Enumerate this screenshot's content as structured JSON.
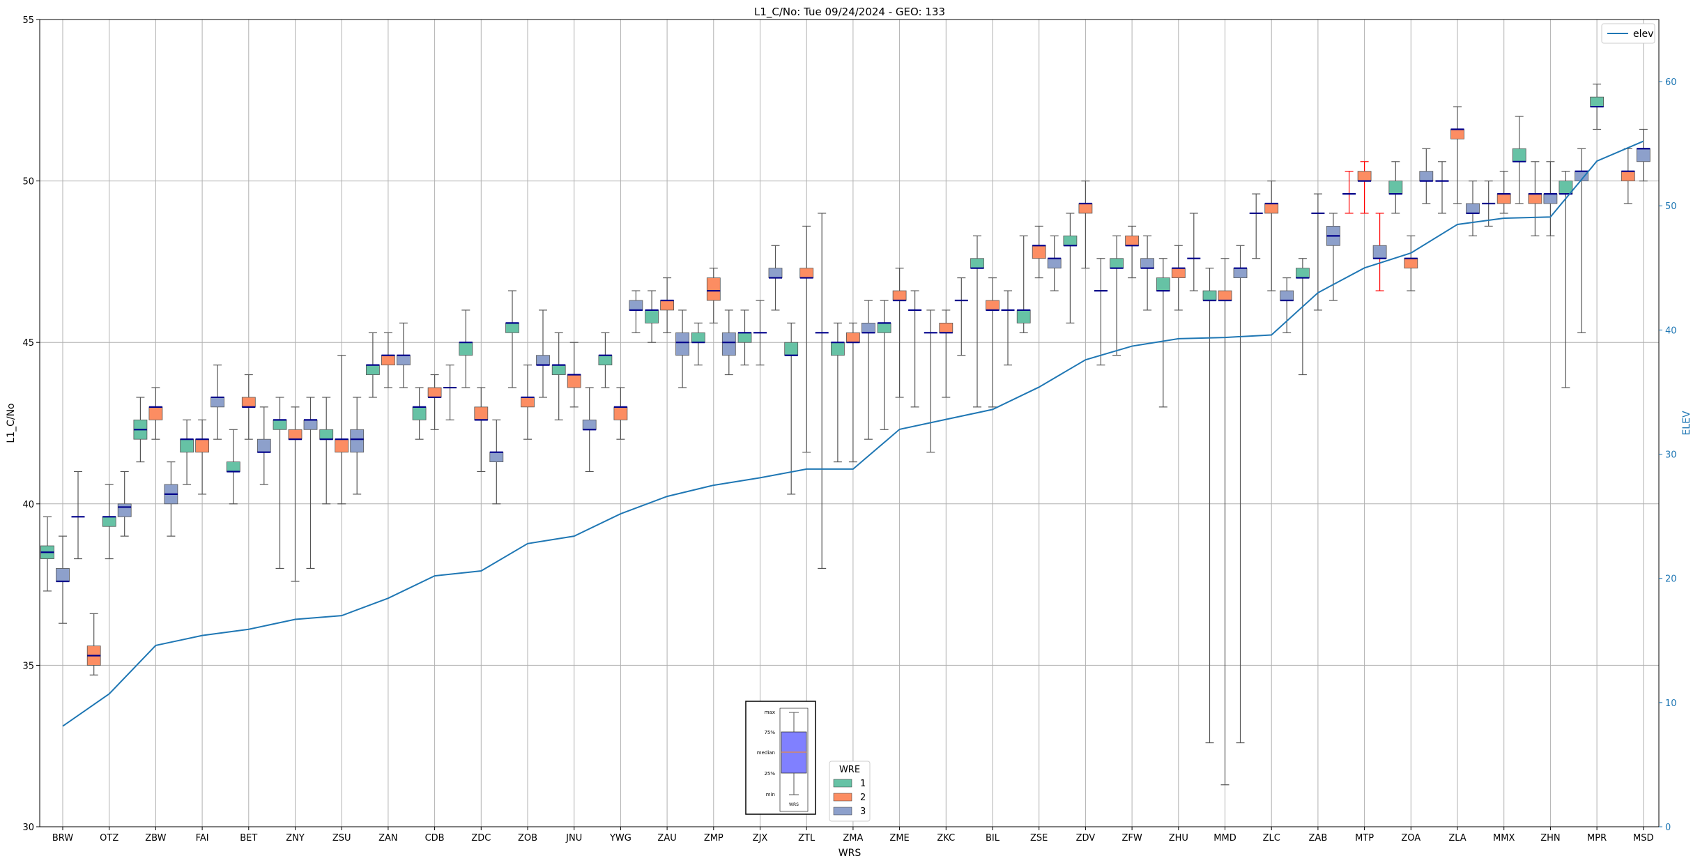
{
  "chart_data": {
    "type": "box",
    "title": "L1_C/No: Tue 09/24/2024 - GEO: 133",
    "xlabel": "WRS",
    "ylabel": "L1_C/No",
    "y2label": "ELEV",
    "ylim": [
      30,
      55
    ],
    "y2lim": [
      0,
      65
    ],
    "yticks": [
      30,
      35,
      40,
      45,
      50,
      55
    ],
    "y2ticks": [
      0,
      10,
      20,
      30,
      40,
      50,
      60
    ],
    "grid": true,
    "legend_elev": {
      "label": "elev",
      "position": "top-right"
    },
    "legend_wre": {
      "title": "WRE",
      "entries": [
        "1",
        "2",
        "3"
      ],
      "position": "bottom-center"
    },
    "colors": {
      "wre1": "#66c2a5",
      "wre2": "#fc8d62",
      "wre3": "#8da0cb",
      "elev": "#1f77b4",
      "median": "#00008b",
      "whisker": "#555555",
      "whisker_alt": "#ff0000"
    },
    "box_key": {
      "labels": [
        "max",
        "75%",
        "median",
        "25%",
        "min"
      ],
      "xlabel": "WRS",
      "fill": "#8080ff"
    },
    "categories": [
      "BRW",
      "OTZ",
      "ZBW",
      "FAI",
      "BET",
      "ZNY",
      "ZSU",
      "ZAN",
      "CDB",
      "ZDC",
      "ZOB",
      "JNU",
      "YWG",
      "ZAU",
      "ZMP",
      "ZJX",
      "ZTL",
      "ZMA",
      "ZME",
      "ZKC",
      "BIL",
      "ZSE",
      "ZDV",
      "ZFW",
      "ZHU",
      "MMD",
      "ZLC",
      "ZAB",
      "MTP",
      "ZOA",
      "ZLA",
      "MMX",
      "ZHN",
      "MPR",
      "MSD"
    ],
    "elev": [
      8.1,
      10.7,
      14.6,
      15.4,
      15.9,
      16.7,
      17.0,
      18.4,
      20.2,
      20.6,
      22.8,
      23.4,
      25.2,
      26.6,
      27.5,
      28.1,
      28.8,
      28.8,
      32.0,
      32.8,
      33.6,
      35.4,
      37.6,
      38.7,
      39.3,
      39.4,
      39.6,
      43.0,
      45.0,
      46.2,
      48.5,
      49.0,
      49.1,
      53.6,
      55.2
    ],
    "boxes": [
      {
        "cat": "BRW",
        "wre": 1,
        "min": 37.3,
        "q1": 38.3,
        "med": 38.5,
        "q3": 38.7,
        "max": 39.6
      },
      {
        "cat": "BRW",
        "wre": 3,
        "min": 36.3,
        "q1": 37.6,
        "med": 37.6,
        "q3": 38.0,
        "max": 39.0
      },
      {
        "cat": "BRW",
        "wre": 0,
        "min": 38.3,
        "q1": 39.6,
        "med": 39.6,
        "q3": 39.6,
        "max": 41.0
      },
      {
        "cat": "OTZ",
        "wre": 2,
        "min": 34.7,
        "q1": 35.0,
        "med": 35.3,
        "q3": 35.6,
        "max": 36.6
      },
      {
        "cat": "OTZ",
        "wre": 1,
        "min": 38.3,
        "q1": 39.3,
        "med": 39.6,
        "q3": 39.6,
        "max": 40.6
      },
      {
        "cat": "OTZ",
        "wre": 3,
        "min": 39.0,
        "q1": 39.6,
        "med": 39.9,
        "q3": 40.0,
        "max": 41.0
      },
      {
        "cat": "ZBW",
        "wre": 1,
        "min": 41.3,
        "q1": 42.0,
        "med": 42.3,
        "q3": 42.6,
        "max": 43.3
      },
      {
        "cat": "ZBW",
        "wre": 2,
        "min": 42.0,
        "q1": 42.6,
        "med": 43.0,
        "q3": 43.0,
        "max": 43.6
      },
      {
        "cat": "ZBW",
        "wre": 3,
        "min": 39.0,
        "q1": 40.0,
        "med": 40.3,
        "q3": 40.6,
        "max": 41.3
      },
      {
        "cat": "FAI",
        "wre": 1,
        "min": 40.6,
        "q1": 41.6,
        "med": 42.0,
        "q3": 42.0,
        "max": 42.6
      },
      {
        "cat": "FAI",
        "wre": 2,
        "min": 40.3,
        "q1": 41.6,
        "med": 42.0,
        "q3": 42.0,
        "max": 42.6
      },
      {
        "cat": "FAI",
        "wre": 3,
        "min": 42.0,
        "q1": 43.0,
        "med": 43.3,
        "q3": 43.3,
        "max": 44.3
      },
      {
        "cat": "BET",
        "wre": 1,
        "min": 40.0,
        "q1": 41.0,
        "med": 41.0,
        "q3": 41.3,
        "max": 42.3
      },
      {
        "cat": "BET",
        "wre": 2,
        "min": 42.0,
        "q1": 43.0,
        "med": 43.0,
        "q3": 43.3,
        "max": 44.0
      },
      {
        "cat": "BET",
        "wre": 3,
        "min": 40.6,
        "q1": 41.6,
        "med": 41.6,
        "q3": 42.0,
        "max": 43.0
      },
      {
        "cat": "ZNY",
        "wre": 1,
        "min": 38.0,
        "q1": 42.3,
        "med": 42.6,
        "q3": 42.6,
        "max": 43.3
      },
      {
        "cat": "ZNY",
        "wre": 2,
        "min": 37.6,
        "q1": 42.0,
        "med": 42.0,
        "q3": 42.3,
        "max": 43.0
      },
      {
        "cat": "ZNY",
        "wre": 3,
        "min": 38.0,
        "q1": 42.3,
        "med": 42.6,
        "q3": 42.6,
        "max": 43.3
      },
      {
        "cat": "ZSU",
        "wre": 1,
        "min": 40.0,
        "q1": 42.0,
        "med": 42.0,
        "q3": 42.3,
        "max": 43.3
      },
      {
        "cat": "ZSU",
        "wre": 2,
        "min": 40.0,
        "q1": 41.6,
        "med": 42.0,
        "q3": 42.0,
        "max": 44.6
      },
      {
        "cat": "ZSU",
        "wre": 3,
        "min": 40.3,
        "q1": 41.6,
        "med": 42.0,
        "q3": 42.3,
        "max": 43.3
      },
      {
        "cat": "ZAN",
        "wre": 1,
        "min": 43.3,
        "q1": 44.0,
        "med": 44.3,
        "q3": 44.3,
        "max": 45.3
      },
      {
        "cat": "ZAN",
        "wre": 2,
        "min": 43.6,
        "q1": 44.3,
        "med": 44.6,
        "q3": 44.6,
        "max": 45.3
      },
      {
        "cat": "ZAN",
        "wre": 3,
        "min": 43.6,
        "q1": 44.3,
        "med": 44.6,
        "q3": 44.6,
        "max": 45.6
      },
      {
        "cat": "CDB",
        "wre": 1,
        "min": 42.0,
        "q1": 42.6,
        "med": 43.0,
        "q3": 43.0,
        "max": 43.6
      },
      {
        "cat": "CDB",
        "wre": 2,
        "min": 42.3,
        "q1": 43.3,
        "med": 43.3,
        "q3": 43.6,
        "max": 44.0
      },
      {
        "cat": "CDB",
        "wre": 0,
        "min": 42.6,
        "q1": 43.6,
        "med": 43.6,
        "q3": 43.6,
        "max": 44.3
      },
      {
        "cat": "ZDC",
        "wre": 1,
        "min": 43.6,
        "q1": 44.6,
        "med": 45.0,
        "q3": 45.0,
        "max": 46.0
      },
      {
        "cat": "ZDC",
        "wre": 2,
        "min": 41.0,
        "q1": 42.6,
        "med": 42.6,
        "q3": 43.0,
        "max": 43.6
      },
      {
        "cat": "ZDC",
        "wre": 3,
        "min": 40.0,
        "q1": 41.3,
        "med": 41.6,
        "q3": 41.6,
        "max": 42.6
      },
      {
        "cat": "ZOB",
        "wre": 1,
        "min": 43.6,
        "q1": 45.3,
        "med": 45.6,
        "q3": 45.6,
        "max": 46.6
      },
      {
        "cat": "ZOB",
        "wre": 2,
        "min": 42.0,
        "q1": 43.0,
        "med": 43.3,
        "q3": 43.3,
        "max": 44.3
      },
      {
        "cat": "ZOB",
        "wre": 3,
        "min": 43.3,
        "q1": 44.3,
        "med": 44.3,
        "q3": 44.6,
        "max": 46.0
      },
      {
        "cat": "JNU",
        "wre": 1,
        "min": 42.6,
        "q1": 44.0,
        "med": 44.3,
        "q3": 44.3,
        "max": 45.3
      },
      {
        "cat": "JNU",
        "wre": 2,
        "min": 43.0,
        "q1": 43.6,
        "med": 44.0,
        "q3": 44.0,
        "max": 45.0
      },
      {
        "cat": "JNU",
        "wre": 3,
        "min": 41.0,
        "q1": 42.3,
        "med": 42.3,
        "q3": 42.6,
        "max": 43.6
      },
      {
        "cat": "YWG",
        "wre": 1,
        "min": 43.6,
        "q1": 44.3,
        "med": 44.6,
        "q3": 44.6,
        "max": 45.3
      },
      {
        "cat": "YWG",
        "wre": 2,
        "min": 42.0,
        "q1": 42.6,
        "med": 43.0,
        "q3": 43.0,
        "max": 43.6
      },
      {
        "cat": "YWG",
        "wre": 3,
        "min": 45.3,
        "q1": 46.0,
        "med": 46.0,
        "q3": 46.3,
        "max": 46.6
      },
      {
        "cat": "ZAU",
        "wre": 1,
        "min": 45.0,
        "q1": 45.6,
        "med": 46.0,
        "q3": 46.0,
        "max": 46.6
      },
      {
        "cat": "ZAU",
        "wre": 2,
        "min": 45.3,
        "q1": 46.0,
        "med": 46.3,
        "q3": 46.3,
        "max": 47.0
      },
      {
        "cat": "ZAU",
        "wre": 3,
        "min": 43.6,
        "q1": 44.6,
        "med": 45.0,
        "q3": 45.3,
        "max": 46.0
      },
      {
        "cat": "ZMP",
        "wre": 1,
        "min": 44.3,
        "q1": 45.0,
        "med": 45.0,
        "q3": 45.3,
        "max": 45.6
      },
      {
        "cat": "ZMP",
        "wre": 2,
        "min": 45.6,
        "q1": 46.3,
        "med": 46.6,
        "q3": 47.0,
        "max": 47.3
      },
      {
        "cat": "ZMP",
        "wre": 3,
        "min": 44.0,
        "q1": 44.6,
        "med": 45.0,
        "q3": 45.3,
        "max": 46.0
      },
      {
        "cat": "ZJX",
        "wre": 1,
        "min": 44.3,
        "q1": 45.0,
        "med": 45.3,
        "q3": 45.3,
        "max": 46.0
      },
      {
        "cat": "ZJX",
        "wre": 0,
        "min": 44.3,
        "q1": 45.3,
        "med": 45.3,
        "q3": 45.3,
        "max": 46.3
      },
      {
        "cat": "ZJX",
        "wre": 3,
        "min": 46.0,
        "q1": 47.0,
        "med": 47.0,
        "q3": 47.3,
        "max": 48.0
      },
      {
        "cat": "ZTL",
        "wre": 1,
        "min": 40.3,
        "q1": 44.6,
        "med": 44.6,
        "q3": 45.0,
        "max": 45.6
      },
      {
        "cat": "ZTL",
        "wre": 2,
        "min": 41.6,
        "q1": 47.0,
        "med": 47.0,
        "q3": 47.3,
        "max": 48.6
      },
      {
        "cat": "ZTL",
        "wre": 0,
        "min": 38.0,
        "q1": 45.3,
        "med": 45.3,
        "q3": 45.3,
        "max": 49.0
      },
      {
        "cat": "ZMA",
        "wre": 1,
        "min": 41.3,
        "q1": 44.6,
        "med": 45.0,
        "q3": 45.0,
        "max": 45.6
      },
      {
        "cat": "ZMA",
        "wre": 2,
        "min": 41.3,
        "q1": 45.0,
        "med": 45.0,
        "q3": 45.3,
        "max": 45.6
      },
      {
        "cat": "ZMA",
        "wre": 3,
        "min": 42.0,
        "q1": 45.3,
        "med": 45.3,
        "q3": 45.6,
        "max": 46.3
      },
      {
        "cat": "ZME",
        "wre": 1,
        "min": 42.3,
        "q1": 45.3,
        "med": 45.6,
        "q3": 45.6,
        "max": 46.3
      },
      {
        "cat": "ZME",
        "wre": 2,
        "min": 43.3,
        "q1": 46.3,
        "med": 46.3,
        "q3": 46.6,
        "max": 47.3
      },
      {
        "cat": "ZME",
        "wre": 0,
        "min": 43.0,
        "q1": 46.0,
        "med": 46.0,
        "q3": 46.0,
        "max": 46.6
      },
      {
        "cat": "ZKC",
        "wre": 0,
        "min": 41.6,
        "q1": 45.3,
        "med": 45.3,
        "q3": 45.3,
        "max": 46.0
      },
      {
        "cat": "ZKC",
        "wre": 2,
        "min": 43.3,
        "q1": 45.3,
        "med": 45.3,
        "q3": 45.6,
        "max": 46.0
      },
      {
        "cat": "ZKC",
        "wre": 0,
        "min": 44.6,
        "q1": 46.3,
        "med": 46.3,
        "q3": 46.3,
        "max": 47.0
      },
      {
        "cat": "BIL",
        "wre": 1,
        "min": 43.0,
        "q1": 47.3,
        "med": 47.3,
        "q3": 47.6,
        "max": 48.3
      },
      {
        "cat": "BIL",
        "wre": 2,
        "min": 43.0,
        "q1": 46.0,
        "med": 46.0,
        "q3": 46.3,
        "max": 47.0
      },
      {
        "cat": "BIL",
        "wre": 0,
        "min": 44.3,
        "q1": 46.0,
        "med": 46.0,
        "q3": 46.0,
        "max": 46.6
      },
      {
        "cat": "ZSE",
        "wre": 1,
        "min": 45.3,
        "q1": 45.6,
        "med": 46.0,
        "q3": 46.0,
        "max": 48.3
      },
      {
        "cat": "ZSE",
        "wre": 2,
        "min": 47.0,
        "q1": 47.6,
        "med": 48.0,
        "q3": 48.0,
        "max": 48.6
      },
      {
        "cat": "ZSE",
        "wre": 3,
        "min": 46.6,
        "q1": 47.3,
        "med": 47.6,
        "q3": 47.6,
        "max": 48.3
      },
      {
        "cat": "ZDV",
        "wre": 1,
        "min": 45.6,
        "q1": 48.0,
        "med": 48.0,
        "q3": 48.3,
        "max": 49.0
      },
      {
        "cat": "ZDV",
        "wre": 2,
        "min": 47.3,
        "q1": 49.0,
        "med": 49.3,
        "q3": 49.3,
        "max": 50.0
      },
      {
        "cat": "ZDV",
        "wre": 0,
        "min": 44.3,
        "q1": 46.6,
        "med": 46.6,
        "q3": 46.6,
        "max": 47.6
      },
      {
        "cat": "ZFW",
        "wre": 1,
        "min": 44.6,
        "q1": 47.3,
        "med": 47.3,
        "q3": 47.6,
        "max": 48.3
      },
      {
        "cat": "ZFW",
        "wre": 2,
        "min": 47.0,
        "q1": 48.0,
        "med": 48.0,
        "q3": 48.3,
        "max": 48.6
      },
      {
        "cat": "ZFW",
        "wre": 3,
        "min": 46.0,
        "q1": 47.3,
        "med": 47.3,
        "q3": 47.6,
        "max": 48.3
      },
      {
        "cat": "ZHU",
        "wre": 1,
        "min": 43.0,
        "q1": 46.6,
        "med": 46.6,
        "q3": 47.0,
        "max": 47.6
      },
      {
        "cat": "ZHU",
        "wre": 2,
        "min": 46.0,
        "q1": 47.0,
        "med": 47.3,
        "q3": 47.3,
        "max": 48.0
      },
      {
        "cat": "ZHU",
        "wre": 0,
        "min": 46.6,
        "q1": 47.6,
        "med": 47.6,
        "q3": 47.6,
        "max": 49.0
      },
      {
        "cat": "MMD",
        "wre": 1,
        "min": 32.6,
        "q1": 46.3,
        "med": 46.3,
        "q3": 46.6,
        "max": 47.3
      },
      {
        "cat": "MMD",
        "wre": 2,
        "min": 31.3,
        "q1": 46.3,
        "med": 46.3,
        "q3": 46.6,
        "max": 47.6
      },
      {
        "cat": "MMD",
        "wre": 3,
        "min": 32.6,
        "q1": 47.0,
        "med": 47.3,
        "q3": 47.3,
        "max": 48.0
      },
      {
        "cat": "ZLC",
        "wre": 0,
        "min": 47.6,
        "q1": 49.0,
        "med": 49.0,
        "q3": 49.0,
        "max": 49.6
      },
      {
        "cat": "ZLC",
        "wre": 2,
        "min": 46.6,
        "q1": 49.0,
        "med": 49.3,
        "q3": 49.3,
        "max": 50.0
      },
      {
        "cat": "ZLC",
        "wre": 3,
        "min": 45.3,
        "q1": 46.3,
        "med": 46.3,
        "q3": 46.6,
        "max": 47.0
      },
      {
        "cat": "ZAB",
        "wre": 1,
        "min": 44.0,
        "q1": 47.0,
        "med": 47.0,
        "q3": 47.3,
        "max": 47.6
      },
      {
        "cat": "ZAB",
        "wre": 0,
        "min": 46.0,
        "q1": 49.0,
        "med": 49.0,
        "q3": 49.0,
        "max": 49.6
      },
      {
        "cat": "ZAB",
        "wre": 3,
        "min": 46.3,
        "q1": 48.0,
        "med": 48.3,
        "q3": 48.6,
        "max": 49.0
      },
      {
        "cat": "MTP",
        "wre": 0,
        "min": 49.0,
        "q1": 49.6,
        "med": 49.6,
        "q3": 49.6,
        "max": 50.3,
        "red": true
      },
      {
        "cat": "MTP",
        "wre": 2,
        "min": 49.0,
        "q1": 50.0,
        "med": 50.0,
        "q3": 50.3,
        "max": 50.6,
        "red": true
      },
      {
        "cat": "MTP",
        "wre": 3,
        "min": 46.6,
        "q1": 47.6,
        "med": 47.6,
        "q3": 48.0,
        "max": 49.0,
        "red": true
      },
      {
        "cat": "ZOA",
        "wre": 1,
        "min": 49.0,
        "q1": 49.6,
        "med": 49.6,
        "q3": 50.0,
        "max": 50.6
      },
      {
        "cat": "ZOA",
        "wre": 2,
        "min": 46.6,
        "q1": 47.3,
        "med": 47.6,
        "q3": 47.6,
        "max": 48.3
      },
      {
        "cat": "ZOA",
        "wre": 3,
        "min": 49.3,
        "q1": 50.0,
        "med": 50.0,
        "q3": 50.3,
        "max": 51.0
      },
      {
        "cat": "ZLA",
        "wre": 0,
        "min": 49.0,
        "q1": 50.0,
        "med": 50.0,
        "q3": 50.0,
        "max": 50.6
      },
      {
        "cat": "ZLA",
        "wre": 2,
        "min": 49.3,
        "q1": 51.3,
        "med": 51.6,
        "q3": 51.6,
        "max": 52.3
      },
      {
        "cat": "ZLA",
        "wre": 3,
        "min": 48.3,
        "q1": 49.0,
        "med": 49.0,
        "q3": 49.3,
        "max": 50.0
      },
      {
        "cat": "MMX",
        "wre": 0,
        "min": 48.6,
        "q1": 49.3,
        "med": 49.3,
        "q3": 49.3,
        "max": 50.0
      },
      {
        "cat": "MMX",
        "wre": 2,
        "min": 49.0,
        "q1": 49.3,
        "med": 49.6,
        "q3": 49.6,
        "max": 50.3
      },
      {
        "cat": "MMX",
        "wre": 1,
        "min": 49.3,
        "q1": 50.6,
        "med": 50.6,
        "q3": 51.0,
        "max": 52.0
      },
      {
        "cat": "ZHN",
        "wre": 2,
        "min": 48.3,
        "q1": 49.3,
        "med": 49.6,
        "q3": 49.6,
        "max": 50.6
      },
      {
        "cat": "ZHN",
        "wre": 3,
        "min": 48.3,
        "q1": 49.3,
        "med": 49.6,
        "q3": 49.6,
        "max": 50.6
      },
      {
        "cat": "ZHN",
        "wre": 1,
        "min": 43.6,
        "q1": 49.6,
        "med": 49.6,
        "q3": 50.0,
        "max": 50.3
      },
      {
        "cat": "MPR",
        "wre": 3,
        "min": 45.3,
        "q1": 50.0,
        "med": 50.3,
        "q3": 50.3,
        "max": 51.0
      },
      {
        "cat": "MPR",
        "wre": 1,
        "min": 51.6,
        "q1": 52.3,
        "med": 52.3,
        "q3": 52.6,
        "max": 53.0
      },
      {
        "cat": "MSD",
        "wre": 2,
        "min": 49.3,
        "q1": 50.0,
        "med": 50.3,
        "q3": 50.3,
        "max": 51.0
      },
      {
        "cat": "MSD",
        "wre": 3,
        "min": 50.0,
        "q1": 50.6,
        "med": 51.0,
        "q3": 51.0,
        "max": 51.6
      }
    ]
  }
}
